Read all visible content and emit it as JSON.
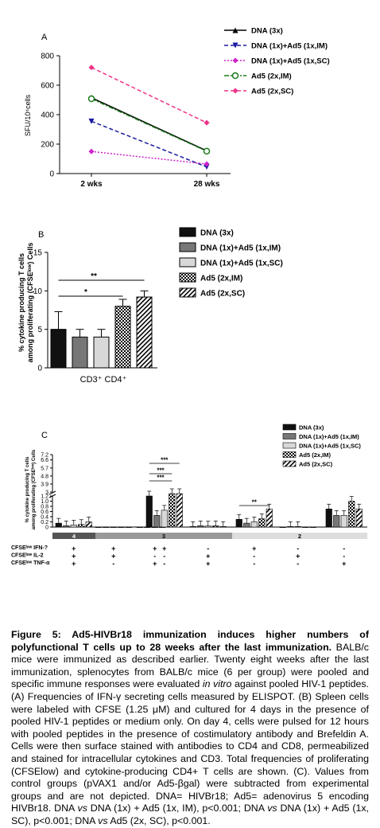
{
  "panelA": {
    "label": "A",
    "ylabel": "SFU/10⁶cells",
    "chart_data": {
      "type": "line",
      "categories": [
        "2 wks",
        "28 wks"
      ],
      "ylim": [
        0,
        800
      ],
      "yticks": [
        "0",
        "200",
        "400",
        "600",
        "800"
      ],
      "series": [
        {
          "name": "DNA (3x)",
          "values": [
            515,
            155
          ],
          "color": "#000000",
          "marker": "triangle",
          "dash": "solid"
        },
        {
          "name": "DNA (1x)+Ad5 (1x,IM)",
          "values": [
            355,
            45
          ],
          "color": "#1a1aa0",
          "marker": "triangle-down",
          "dash": "dashed"
        },
        {
          "name": "DNA (1x)+Ad5 (1x,SC)",
          "values": [
            150,
            65
          ],
          "color": "#cc22cc",
          "marker": "diamond",
          "dash": "dotted"
        },
        {
          "name": "Ad5 (2x,IM)",
          "values": [
            508,
            152
          ],
          "color": "#1a7a1a",
          "marker": "circle",
          "dash": "dashdot"
        },
        {
          "name": "Ad5 (2x,SC)",
          "values": [
            720,
            345
          ],
          "color": "#ee3388",
          "marker": "diamond",
          "dash": "dashed"
        }
      ]
    }
  },
  "panelB": {
    "label": "B",
    "ylabel_line1": "% cytokine producing T cells",
    "ylabel_line2": "among proliferating (CFSEˡᵒʷ) Cells",
    "xlabel": "CD3⁺ CD4⁺",
    "sig_outer": "**",
    "sig_inner": "*",
    "chart_data": {
      "type": "bar",
      "categories": [
        "DNA (3x)",
        "DNA (1x)+Ad5 (1x,IM)",
        "DNA (1x)+Ad5 (1x,SC)",
        "Ad5 (2x,IM)",
        "Ad5 (2x,SC)"
      ],
      "values": [
        5.0,
        4.0,
        4.0,
        8.0,
        9.2
      ],
      "errors": [
        2.3,
        1.0,
        1.0,
        0.9,
        0.8
      ],
      "ylim": [
        0,
        15
      ],
      "yticks": [
        "0",
        "5",
        "10",
        "15"
      ],
      "legend": [
        "DNA (3x)",
        "DNA (1x)+Ad5 (1x,IM)",
        "DNA (1x)+Ad5 (1x,SC)",
        "Ad5 (2x,IM)",
        "Ad5 (2x,SC)"
      ]
    }
  },
  "panelC": {
    "label": "C",
    "ylabel_line1": "% cytokine producing T cells",
    "ylabel_line2": "among proliferating (CFSEˡᵒʷ) Cells",
    "yticks_top": [
      "3",
      "3.9",
      "4.8",
      "5.7",
      "6.6",
      "7.2"
    ],
    "yticks_bottom": [
      "0",
      "0.2",
      "0.4",
      "0.6",
      "0.8",
      "1.0",
      "1.2"
    ],
    "legend": [
      "DNA (3x)",
      "DNA (1x)+Ad5 (1x,IM)",
      "DNA (1x)+Ad5 (1x,SC)",
      "Ad5 (2x,IM)",
      "Ad5 (2x,SC)"
    ],
    "sig_labels": [
      "***",
      "***",
      "***",
      "**"
    ],
    "group_band": [
      "4",
      "3",
      "2"
    ],
    "row_labels": [
      "CFSEˡᵒʷ IFN-?",
      "CFSEˡᵒʷ IL-2",
      "CFSEˡᵒʷ TNF-α"
    ],
    "chart_data": {
      "type": "bar",
      "groups": [
        {
          "band": "4",
          "ifn": "+",
          "il2": "+",
          "tnf": "+",
          "values": [
            0.15,
            0.05,
            0.08,
            0.1,
            0.2
          ]
        },
        {
          "band": "4",
          "ifn": "+",
          "il2": "+",
          "tnf": "-",
          "values": [
            0.0,
            0.0,
            0.0,
            0.0,
            0.0
          ]
        },
        {
          "band": "3",
          "ifn": "+",
          "il2": "-",
          "tnf": "+",
          "values": [
            0.0,
            0.0,
            0.0,
            0.0,
            0.02
          ]
        },
        {
          "band": "3",
          "ifn": "+",
          "il2": "-",
          "tnf": "-",
          "values": [
            1.2,
            0.45,
            0.65,
            1.3,
            2.8
          ]
        },
        {
          "band": "3",
          "ifn": "-",
          "il2": "+",
          "tnf": "+",
          "values": [
            0.02,
            0.05,
            0.04,
            0.05,
            0.02
          ]
        },
        {
          "band": "2",
          "ifn": "+",
          "il2": "-",
          "tnf": "-",
          "values": [
            0.3,
            0.15,
            0.2,
            0.32,
            0.7
          ]
        },
        {
          "band": "2",
          "ifn": "-",
          "il2": "+",
          "tnf": "-",
          "values": [
            0.0,
            0.02,
            0.02,
            0.0,
            0.0
          ]
        },
        {
          "band": "2",
          "ifn": "-",
          "il2": "-",
          "tnf": "+",
          "values": [
            0.7,
            0.45,
            0.45,
            1.0,
            0.7
          ]
        }
      ]
    }
  },
  "caption": {
    "title": "Figure 5: Ad5-HIVBr18 immunization induces higher numbers of polyfunctional T cells up to 28 weeks after the last immunization.",
    "body_part1": " BALB/c mice were immunized as described earlier. Twenty eight weeks after the last immunization, splenocytes from BALB/c mice (6 per group) were pooled and specific immune responses were evaluated ",
    "italic1": "in vitro",
    "body_part2": " against pooled HIV-1 peptides. (A) Frequencies of IFN-γ secreting cells measured by ELISPOT. (B) Spleen cells were labeled with CFSE (1.25 μM) and cultured for 4 days in the presence of pooled HIV-1 peptides or medium only. On day 4, cells were pulsed for 12 hours with pooled peptides in the presence of costimulatory antibody and Brefeldin A. Cells were then surface stained with antibodies to CD4 and CD8, permeabilized and stained for intracellular cytokines and CD3. Total frequencies of proliferating (CFSElow) and cytokine-producing CD4+ T cells are shown. (C). Values from control groups (pVAX1 and/or Ad5-βgal) were subtracted from experimental groups and are not depicted. DNA= HIVBr18; Ad5= adenovirus 5 encoding HIVBr18. DNA ",
    "vs": "vs",
    "body_part3": " DNA (1x) + Ad5 (1x, IM), p<0.001; DNA ",
    "body_part4": " DNA (1x) + Ad5 (1x, SC), p<0.001; DNA ",
    "body_part5": " Ad5 (2x, SC), p<0.001."
  }
}
